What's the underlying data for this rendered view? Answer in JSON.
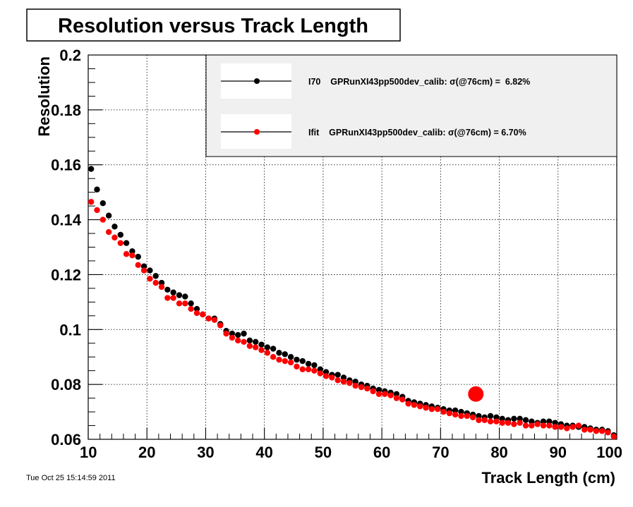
{
  "chart_data": {
    "type": "scatter",
    "title": "Resolution versus Track Length",
    "xlabel": "Track Length (cm)",
    "ylabel": "Resolution",
    "xlim": [
      10,
      100
    ],
    "ylim": [
      0.06,
      0.2
    ],
    "x_ticks": [
      "10",
      "20",
      "30",
      "40",
      "50",
      "60",
      "70",
      "80",
      "90",
      "100"
    ],
    "y_ticks": [
      "0.06",
      "0.08",
      "0.1",
      "0.12",
      "0.14",
      "0.16",
      "0.18",
      "0.2"
    ],
    "grid": true,
    "legend_position": "top-right",
    "series": [
      {
        "name": "I70",
        "legend_label": "I70    GPRunXI43pp500dev_calib: σ(@76cm) =  6.82%",
        "color": "#000000",
        "x": [
          10.5,
          11.5,
          12.5,
          13.5,
          14.5,
          15.5,
          16.5,
          17.5,
          18.5,
          19.5,
          20.5,
          21.5,
          22.5,
          23.5,
          24.5,
          25.5,
          26.5,
          27.5,
          28.5,
          29.5,
          30.5,
          31.5,
          32.5,
          33.5,
          34.5,
          35.5,
          36.5,
          37.5,
          38.5,
          39.5,
          40.5,
          41.5,
          42.5,
          43.5,
          44.5,
          45.5,
          46.5,
          47.5,
          48.5,
          49.5,
          50.5,
          51.5,
          52.5,
          53.5,
          54.5,
          55.5,
          56.5,
          57.5,
          58.5,
          59.5,
          60.5,
          61.5,
          62.5,
          63.5,
          64.5,
          65.5,
          66.5,
          67.5,
          68.5,
          69.5,
          70.5,
          71.5,
          72.5,
          73.5,
          74.5,
          75.5,
          76.5,
          77.5,
          78.5,
          79.5,
          80.5,
          81.5,
          82.5,
          83.5,
          84.5,
          85.5,
          86.5,
          87.5,
          88.5,
          89.5,
          90.5,
          91.5,
          92.5,
          93.5,
          94.5,
          95.5,
          96.5,
          97.5,
          98.5,
          99.5
        ],
        "y": [
          0.1585,
          0.151,
          0.146,
          0.1415,
          0.1375,
          0.1345,
          0.1315,
          0.1285,
          0.1265,
          0.123,
          0.1215,
          0.1195,
          0.117,
          0.1145,
          0.1135,
          0.1125,
          0.112,
          0.1095,
          0.1075,
          0.1055,
          0.104,
          0.104,
          0.102,
          0.0995,
          0.0985,
          0.098,
          0.0985,
          0.096,
          0.0955,
          0.0945,
          0.0935,
          0.093,
          0.0915,
          0.091,
          0.09,
          0.089,
          0.0885,
          0.0875,
          0.087,
          0.0855,
          0.0845,
          0.0835,
          0.0835,
          0.0825,
          0.0815,
          0.081,
          0.08,
          0.0795,
          0.0785,
          0.078,
          0.0775,
          0.077,
          0.0765,
          0.0755,
          0.074,
          0.0735,
          0.073,
          0.0725,
          0.072,
          0.0715,
          0.071,
          0.0705,
          0.0705,
          0.07,
          0.0695,
          0.069,
          0.0685,
          0.068,
          0.0685,
          0.068,
          0.0675,
          0.067,
          0.0675,
          0.0675,
          0.067,
          0.0665,
          0.066,
          0.0665,
          0.0665,
          0.066,
          0.0655,
          0.065,
          0.065,
          0.0645,
          0.0645,
          0.064,
          0.0635,
          0.0635,
          0.063,
          0.0615
        ]
      },
      {
        "name": "Ifit",
        "legend_label": "Ifit    GPRunXI43pp500dev_calib: σ(@76cm) = 6.70%",
        "color": "#ff0000",
        "x": [
          10.5,
          11.5,
          12.5,
          13.5,
          14.5,
          15.5,
          16.5,
          17.5,
          18.5,
          19.5,
          20.5,
          21.5,
          22.5,
          23.5,
          24.5,
          25.5,
          26.5,
          27.5,
          28.5,
          29.5,
          30.5,
          31.5,
          32.5,
          33.5,
          34.5,
          35.5,
          36.5,
          37.5,
          38.5,
          39.5,
          40.5,
          41.5,
          42.5,
          43.5,
          44.5,
          45.5,
          46.5,
          47.5,
          48.5,
          49.5,
          50.5,
          51.5,
          52.5,
          53.5,
          54.5,
          55.5,
          56.5,
          57.5,
          58.5,
          59.5,
          60.5,
          61.5,
          62.5,
          63.5,
          64.5,
          65.5,
          66.5,
          67.5,
          68.5,
          69.5,
          70.5,
          71.5,
          72.5,
          73.5,
          74.5,
          75.5,
          76.5,
          77.5,
          78.5,
          79.5,
          80.5,
          81.5,
          82.5,
          83.5,
          84.5,
          85.5,
          86.5,
          87.5,
          88.5,
          89.5,
          90.5,
          91.5,
          92.5,
          93.5,
          94.5,
          95.5,
          96.5,
          97.5,
          98.5,
          99.5
        ],
        "y": [
          0.1465,
          0.1435,
          0.14,
          0.1355,
          0.1335,
          0.1315,
          0.1275,
          0.127,
          0.1235,
          0.1215,
          0.1185,
          0.117,
          0.1155,
          0.1115,
          0.1115,
          0.1095,
          0.1095,
          0.1075,
          0.106,
          0.1055,
          0.104,
          0.1035,
          0.1015,
          0.0985,
          0.097,
          0.096,
          0.0955,
          0.094,
          0.0935,
          0.0925,
          0.0915,
          0.09,
          0.089,
          0.0885,
          0.088,
          0.0865,
          0.0855,
          0.0855,
          0.085,
          0.084,
          0.083,
          0.0825,
          0.0815,
          0.081,
          0.0805,
          0.0795,
          0.079,
          0.0785,
          0.0775,
          0.0765,
          0.0765,
          0.076,
          0.075,
          0.0745,
          0.073,
          0.0725,
          0.072,
          0.0715,
          0.071,
          0.071,
          0.07,
          0.0695,
          0.069,
          0.0685,
          0.0685,
          0.068,
          0.067,
          0.067,
          0.0665,
          0.0665,
          0.066,
          0.066,
          0.0655,
          0.066,
          0.065,
          0.065,
          0.0655,
          0.065,
          0.065,
          0.0645,
          0.0645,
          0.064,
          0.0645,
          0.065,
          0.0635,
          0.0635,
          0.063,
          0.063,
          0.0625,
          0.061
        ]
      }
    ],
    "highlight_marker": {
      "x": 76,
      "y": 0.0765,
      "color": "#ff0000"
    }
  },
  "timestamp": "Tue Oct 25 15:14:59 2011"
}
